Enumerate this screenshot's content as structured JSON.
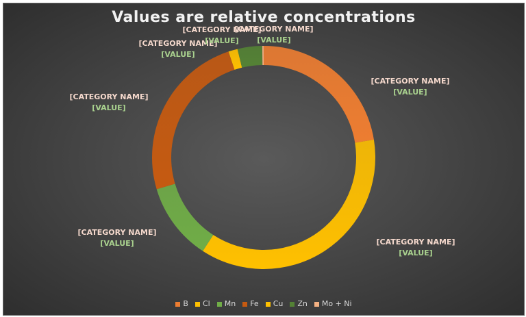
{
  "chart_data": {
    "type": "pie",
    "title": "Values are relative concentrations",
    "categories": [
      "B",
      "Cl",
      "Mn",
      "Fe",
      "Cu",
      "Zn",
      "Mo + Ni"
    ],
    "values": [
      22,
      36,
      11,
      24,
      1.3,
      3.5,
      0.2
    ],
    "series": [
      {
        "name": "B",
        "value": 22,
        "color": "#ED7D31"
      },
      {
        "name": "Cl",
        "value": 36,
        "color": "#FFC000"
      },
      {
        "name": "Mn",
        "value": 11,
        "color": "#70AD47"
      },
      {
        "name": "Fe",
        "value": 24,
        "color": "#C55A11"
      },
      {
        "name": "Cu",
        "value": 1.3,
        "color": "#FFC000"
      },
      {
        "name": "Zn",
        "value": 3.5,
        "color": "#548235"
      },
      {
        "name": "Mo + Ni",
        "value": 0.2,
        "color": "#F4B183"
      }
    ],
    "data_labels": {
      "category": "[CATEGORY NAME]",
      "value": "[VALUE]"
    },
    "legend_position": "bottom",
    "donut": true
  }
}
